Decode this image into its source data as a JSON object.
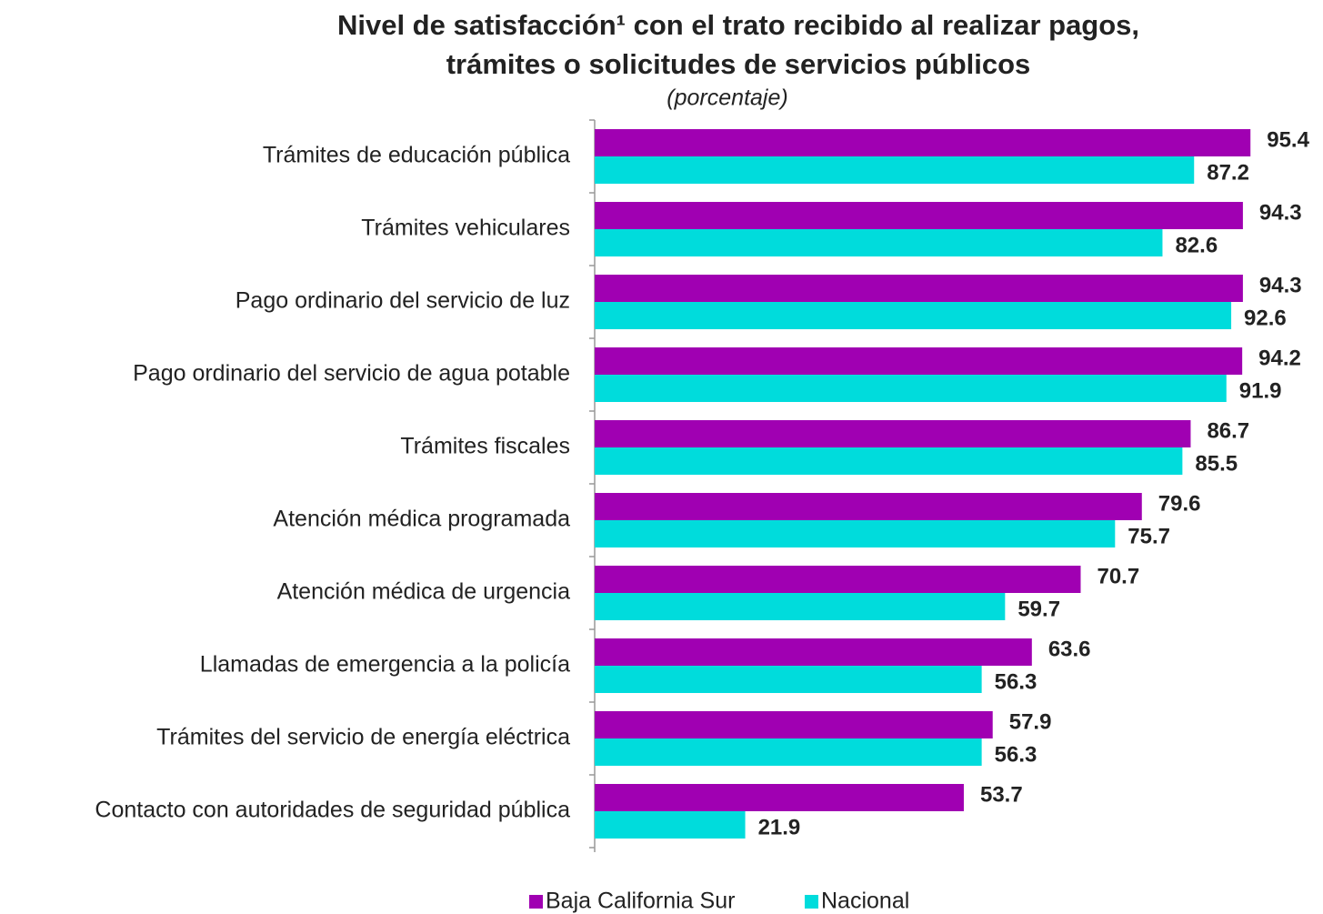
{
  "chart_data": {
    "type": "bar",
    "orientation": "horizontal",
    "title": [
      "Nivel de satisfacción¹ con el trato recibido al realizar pagos,",
      "trámites o solicitudes de servicios públicos"
    ],
    "subtitle": "(porcentaje)",
    "categories": [
      "Trámites de educación pública",
      "Trámites vehiculares",
      "Pago ordinario del servicio de luz",
      "Pago ordinario del servicio de agua potable",
      "Trámites fiscales",
      "Atención médica programada",
      "Atención médica de urgencia",
      "Llamadas de emergencia a la policía",
      "Trámites del servicio de energía eléctrica",
      "Contacto con autoridades de seguridad pública"
    ],
    "series": [
      {
        "name": "Baja California Sur",
        "color": "#a000b2",
        "label_color": "#a000b2",
        "values": [
          95.4,
          94.3,
          94.3,
          94.2,
          86.7,
          79.6,
          70.7,
          63.6,
          57.9,
          53.7
        ]
      },
      {
        "name": "Nacional",
        "color": "#00dcdc",
        "label_color": "#222222",
        "values": [
          87.2,
          82.6,
          92.6,
          91.9,
          85.5,
          75.7,
          59.7,
          56.3,
          56.3,
          21.9
        ]
      }
    ],
    "xlim": [
      0,
      100
    ],
    "legend": "bottom"
  }
}
